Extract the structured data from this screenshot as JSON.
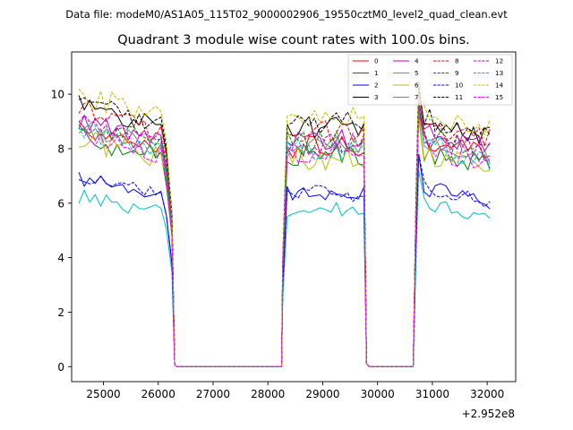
{
  "chart_data": {
    "type": "line",
    "suptitle": "Data file: modeM0/AS1A05_115T02_9000002906_19550cztM0_level2_quad_clean.evt",
    "title": "Quadrant 3 module wise count rates with 100.0s bins.",
    "xlabel": "",
    "ylabel": "",
    "x_offset_label": "+2.952e8",
    "xlim": [
      24420,
      32520
    ],
    "ylim": [
      -0.55,
      11.55
    ],
    "xticks": [
      25000,
      26000,
      27000,
      28000,
      29000,
      30000,
      31000,
      32000
    ],
    "yticks": [
      0,
      2,
      4,
      6,
      8,
      10
    ],
    "bin_seconds": 100,
    "segments": [
      [
        24550,
        26250
      ],
      [
        28350,
        29750
      ],
      [
        30750,
        32050
      ]
    ],
    "zero_ranges": [
      [
        26350,
        28250
      ],
      [
        29850,
        30650
      ]
    ],
    "legend": {
      "location": "top-right",
      "columns": 4
    },
    "series": [
      {
        "name": "0",
        "level": 7.9,
        "color": "#ff0000",
        "dash": "solid"
      },
      {
        "name": "1",
        "level": 7.6,
        "color": "#008000",
        "dash": "solid"
      },
      {
        "name": "2",
        "level": 6.2,
        "color": "#0000ff",
        "dash": "solid"
      },
      {
        "name": "3",
        "level": 8.6,
        "color": "#000000",
        "dash": "solid"
      },
      {
        "name": "4",
        "level": 8.2,
        "color": "#bf00bf",
        "dash": "solid"
      },
      {
        "name": "5",
        "level": 5.6,
        "color": "#00bfbf",
        "dash": "solid"
      },
      {
        "name": "6",
        "level": 7.5,
        "color": "#bfbf00",
        "dash": "solid"
      },
      {
        "name": "7",
        "level": 7.9,
        "color": "#808080",
        "dash": "solid"
      },
      {
        "name": "8",
        "level": 8.5,
        "color": "#ff0000",
        "dash": "dashed"
      },
      {
        "name": "9",
        "level": 8.1,
        "color": "#008000",
        "dash": "dashed"
      },
      {
        "name": "10",
        "level": 6.2,
        "color": "#0000ff",
        "dash": "dashed"
      },
      {
        "name": "11",
        "level": 8.8,
        "color": "#000000",
        "dash": "dashed"
      },
      {
        "name": "12",
        "level": 8.0,
        "color": "#bf00bf",
        "dash": "dashed"
      },
      {
        "name": "13",
        "level": 7.8,
        "color": "#00bfbf",
        "dash": "dashed"
      },
      {
        "name": "14",
        "level": 9.0,
        "color": "#bfbf00",
        "dash": "dashed"
      },
      {
        "name": "15",
        "level": 7.7,
        "color": "#ff00ff",
        "dash": "dashed"
      }
    ]
  }
}
